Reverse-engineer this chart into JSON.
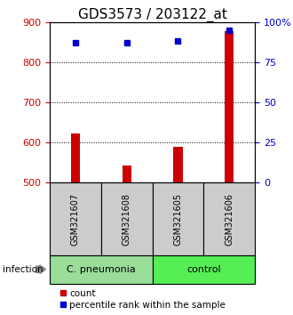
{
  "title": "GDS3573 / 203122_at",
  "samples": [
    "GSM321607",
    "GSM321608",
    "GSM321605",
    "GSM321606"
  ],
  "counts": [
    623,
    543,
    590,
    877
  ],
  "percentile_ranks": [
    87,
    87,
    88,
    95
  ],
  "ymin": 500,
  "ymax": 900,
  "yticks_left": [
    500,
    600,
    700,
    800,
    900
  ],
  "yticks_right": [
    0,
    25,
    50,
    75,
    100
  ],
  "bar_color": "#cc0000",
  "dot_color": "#0000cc",
  "groups": [
    {
      "label": "C. pneumonia",
      "color": "#99dd99"
    },
    {
      "label": "control",
      "color": "#55ee55"
    }
  ],
  "infection_label": "infection",
  "legend_count_label": "count",
  "legend_pct_label": "percentile rank within the sample",
  "sample_box_color": "#cccccc",
  "title_fontsize": 11,
  "tick_fontsize": 8,
  "sample_fontsize": 7,
  "group_fontsize": 8,
  "legend_fontsize": 7.5,
  "bar_width": 0.18,
  "dot_size": 5
}
